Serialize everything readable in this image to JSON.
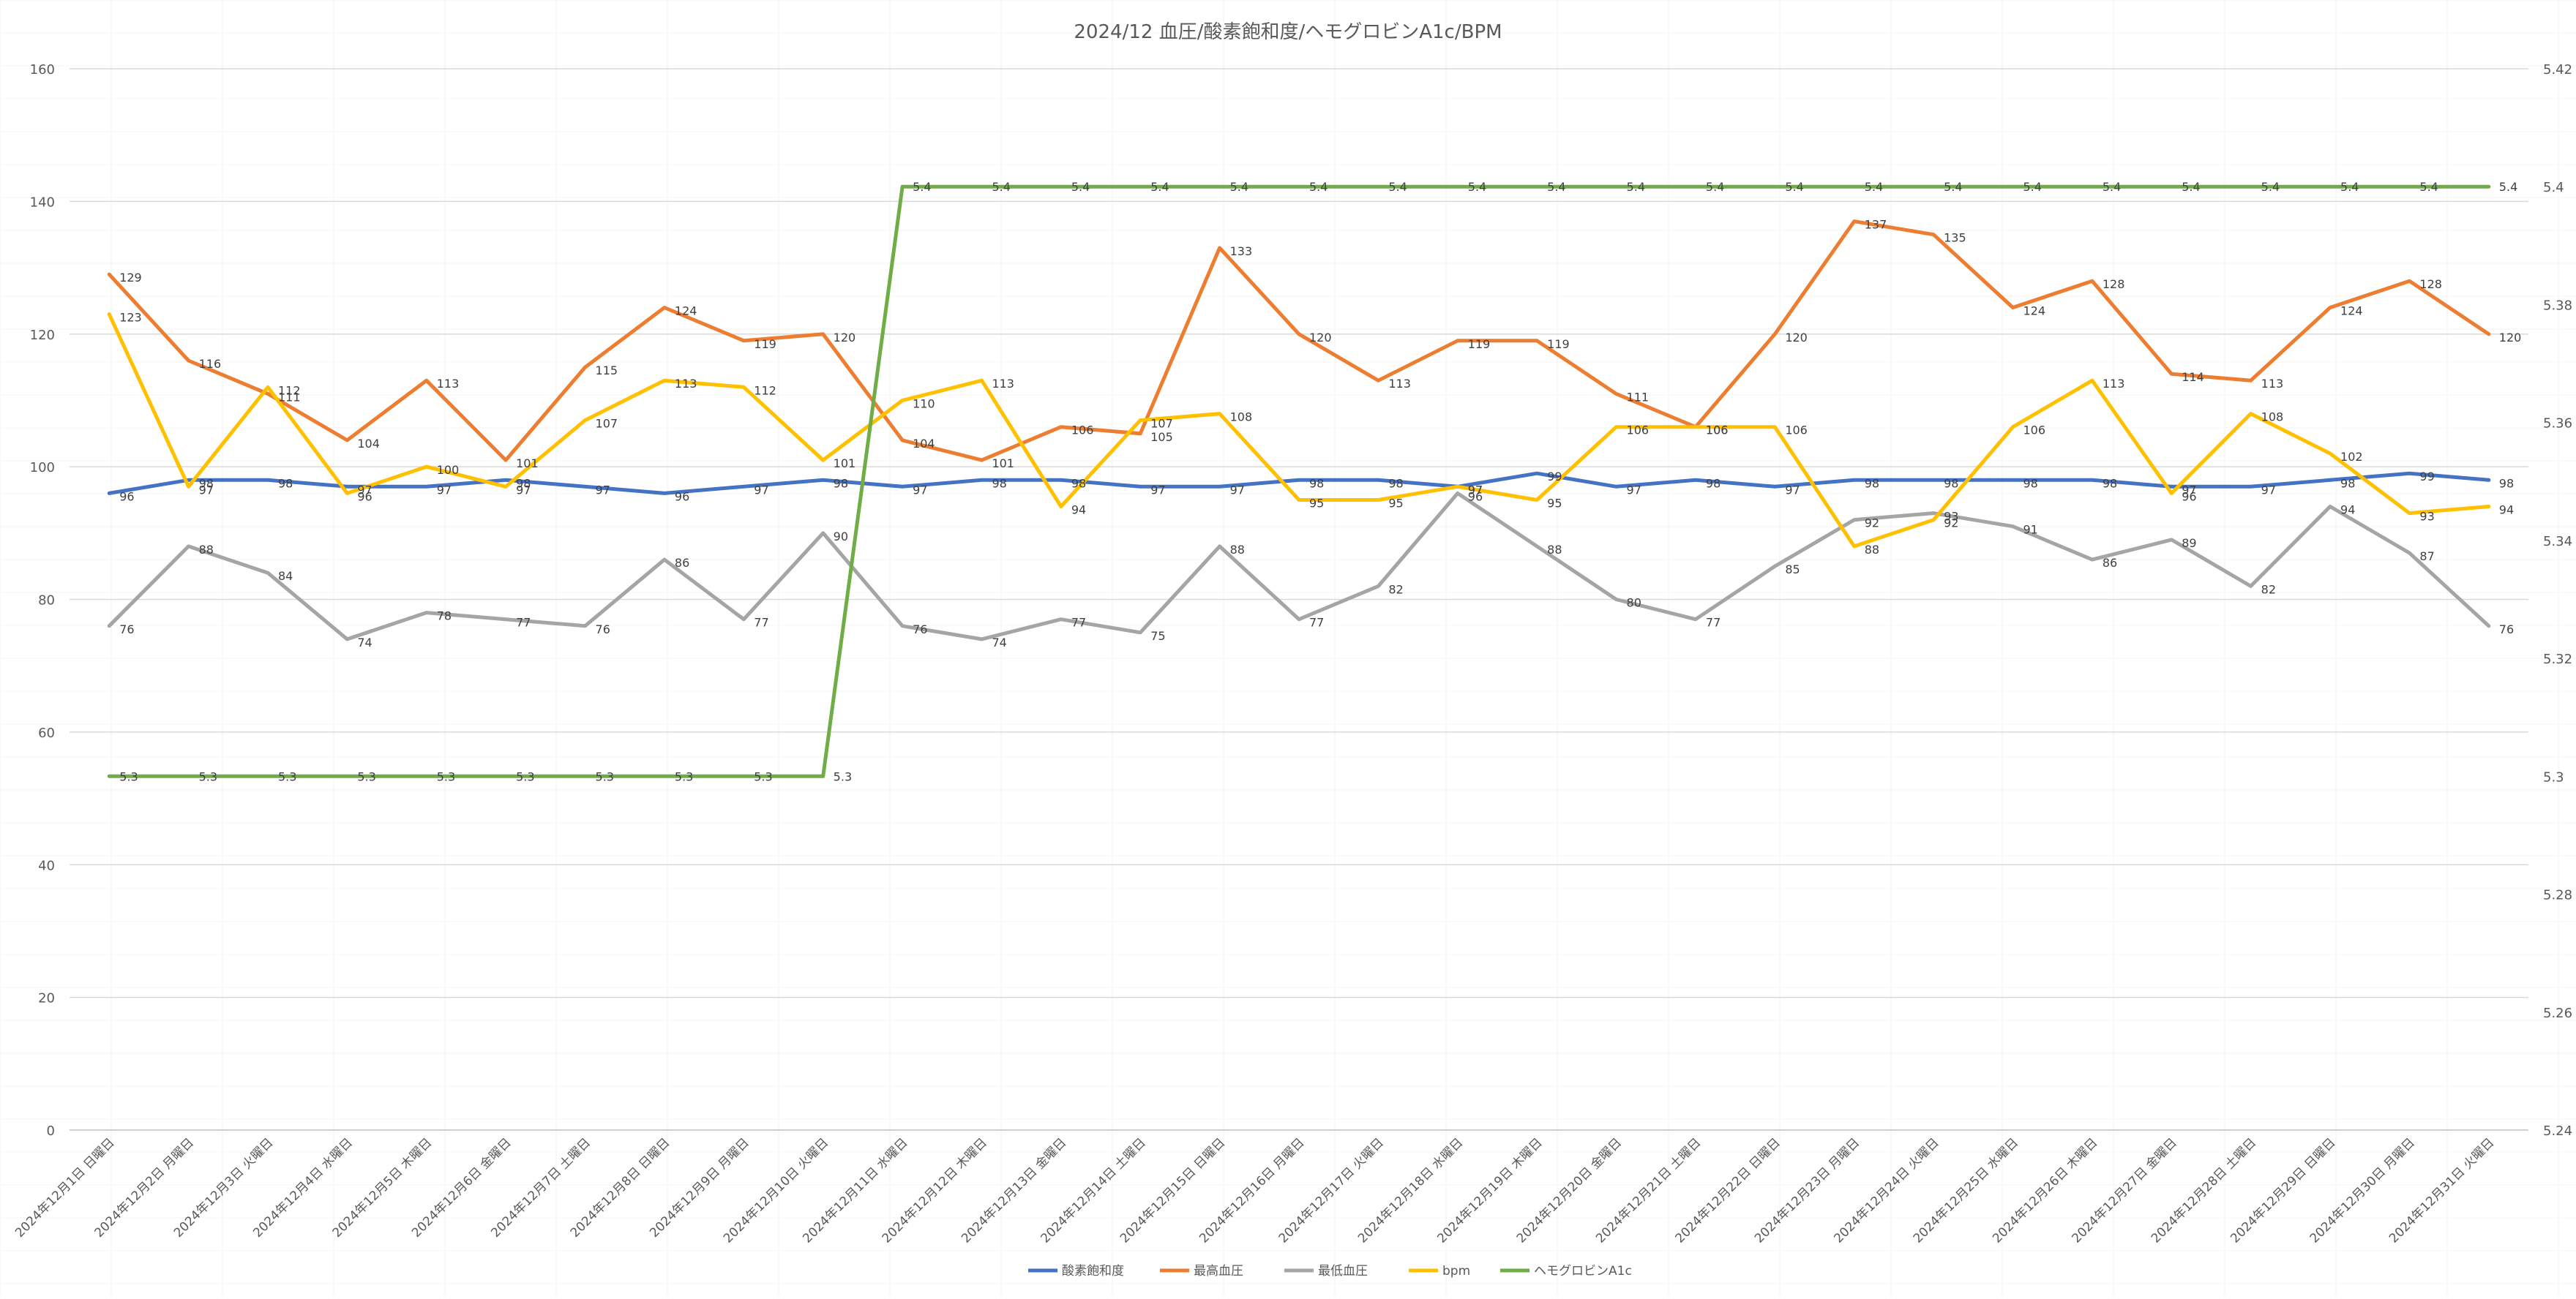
{
  "chart_data": {
    "type": "line",
    "title": "2024/12 血圧/酸素飽和度/ヘモグロビンA1c/BPM",
    "xlabel": "",
    "ylabel": "",
    "ylim": [
      0,
      160
    ],
    "y_ticks": [
      0,
      20,
      40,
      60,
      80,
      100,
      120,
      140,
      160
    ],
    "y2lim": [
      5.24,
      5.42
    ],
    "y2_ticks": [
      "5.24",
      "5.26",
      "5.28",
      "5.3",
      "5.32",
      "5.34",
      "5.36",
      "5.38",
      "5.4",
      "5.42"
    ],
    "grid": true,
    "legend_position": "bottom",
    "categories": [
      "2024年12月1日 日曜日",
      "2024年12月2日 月曜日",
      "2024年12月3日 火曜日",
      "2024年12月4日 水曜日",
      "2024年12月5日 木曜日",
      "2024年12月6日 金曜日",
      "2024年12月7日 土曜日",
      "2024年12月8日 日曜日",
      "2024年12月9日 月曜日",
      "2024年12月10日 火曜日",
      "2024年12月11日 水曜日",
      "2024年12月12日 木曜日",
      "2024年12月13日 金曜日",
      "2024年12月14日 土曜日",
      "2024年12月15日 日曜日",
      "2024年12月16日 月曜日",
      "2024年12月17日 火曜日",
      "2024年12月18日 水曜日",
      "2024年12月19日 木曜日",
      "2024年12月20日 金曜日",
      "2024年12月21日 土曜日",
      "2024年12月22日 日曜日",
      "2024年12月23日 月曜日",
      "2024年12月24日 火曜日",
      "2024年12月25日 水曜日",
      "2024年12月26日 木曜日",
      "2024年12月27日 金曜日",
      "2024年12月28日 土曜日",
      "2024年12月29日 日曜日",
      "2024年12月30日 月曜日",
      "2024年12月31日 火曜日"
    ],
    "series": [
      {
        "name": "酸素飽和度",
        "color": "#4472C4",
        "axis": "primary",
        "values": [
          96,
          98,
          98,
          97,
          97,
          98,
          97,
          96,
          97,
          98,
          97,
          98,
          98,
          97,
          97,
          98,
          98,
          97,
          99,
          97,
          98,
          97,
          98,
          98,
          98,
          98,
          97,
          97,
          98,
          99,
          98
        ]
      },
      {
        "name": "最高血圧",
        "color": "#ED7D31",
        "axis": "primary",
        "values": [
          129,
          116,
          111,
          104,
          113,
          101,
          115,
          124,
          119,
          120,
          104,
          101,
          106,
          105,
          133,
          120,
          113,
          119,
          119,
          111,
          106,
          120,
          137,
          135,
          124,
          128,
          114,
          113,
          124,
          128,
          120
        ]
      },
      {
        "name": "最低血圧",
        "color": "#A5A5A5",
        "axis": "primary",
        "values": [
          76,
          88,
          84,
          74,
          78,
          77,
          76,
          86,
          77,
          90,
          76,
          74,
          77,
          75,
          88,
          77,
          82,
          96,
          88,
          80,
          77,
          85,
          92,
          93,
          91,
          86,
          89,
          82,
          94,
          87,
          76
        ]
      },
      {
        "name": "bpm",
        "color": "#FFC000",
        "axis": "primary",
        "values": [
          123,
          97,
          112,
          96,
          100,
          97,
          107,
          113,
          112,
          101,
          110,
          113,
          94,
          107,
          108,
          95,
          95,
          97,
          95,
          106,
          106,
          106,
          88,
          92,
          106,
          113,
          96,
          108,
          102,
          93,
          94
        ]
      },
      {
        "name": "ヘモグロビンA1c",
        "color": "#70AD47",
        "axis": "secondary",
        "values": [
          5.3,
          5.3,
          5.3,
          5.3,
          5.3,
          5.3,
          5.3,
          5.3,
          5.3,
          5.3,
          5.4,
          5.4,
          5.4,
          5.4,
          5.4,
          5.4,
          5.4,
          5.4,
          5.4,
          5.4,
          5.4,
          5.4,
          5.4,
          5.4,
          5.4,
          5.4,
          5.4,
          5.4,
          5.4,
          5.4,
          5.4
        ]
      }
    ]
  }
}
